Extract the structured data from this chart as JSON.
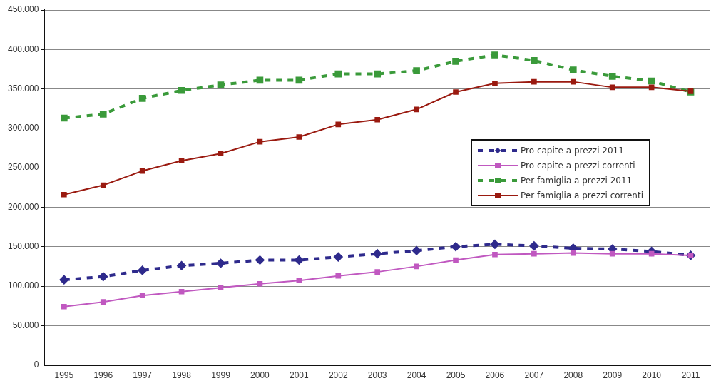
{
  "chart_data": {
    "type": "line",
    "categories": [
      "1995",
      "1996",
      "1997",
      "1998",
      "1999",
      "2000",
      "2001",
      "2002",
      "2003",
      "2004",
      "2005",
      "2006",
      "2007",
      "2008",
      "2009",
      "2010",
      "2011"
    ],
    "series": [
      {
        "name": "Pro capite a prezzi 2011",
        "color": "#2e2a8c",
        "line_style": "dashed",
        "marker": "diamond",
        "values": [
          108000,
          112000,
          120000,
          126000,
          129000,
          133000,
          133000,
          137000,
          141000,
          145000,
          150000,
          153000,
          151000,
          148000,
          147000,
          144000,
          139000
        ]
      },
      {
        "name": "Pro capite a prezzi correnti",
        "color": "#c058c0",
        "line_style": "solid",
        "marker": "square",
        "values": [
          74000,
          80000,
          88000,
          93000,
          98000,
          103000,
          107000,
          113000,
          118000,
          125000,
          133000,
          140000,
          141000,
          142000,
          141000,
          141000,
          139000
        ]
      },
      {
        "name": "Per famiglia a prezzi 2011",
        "color": "#3a9a3a",
        "line_style": "dashed",
        "marker": "square",
        "values": [
          313000,
          318000,
          338000,
          348000,
          355000,
          361000,
          361000,
          369000,
          369000,
          373000,
          385000,
          393000,
          386000,
          374000,
          366000,
          360000,
          346000
        ]
      },
      {
        "name": "Per famiglia a prezzi correnti",
        "color": "#9a1a10",
        "line_style": "solid",
        "marker": "square",
        "values": [
          216000,
          228000,
          246000,
          259000,
          268000,
          283000,
          289000,
          305000,
          311000,
          324000,
          346000,
          357000,
          359000,
          359000,
          352000,
          352000,
          347000
        ]
      }
    ],
    "ylim": [
      0,
      450000
    ],
    "yticks": [
      {
        "value": 0,
        "label": "0"
      },
      {
        "value": 50000,
        "label": "50.000"
      },
      {
        "value": 100000,
        "label": "100.000"
      },
      {
        "value": 150000,
        "label": "150.000"
      },
      {
        "value": 200000,
        "label": "200.000"
      },
      {
        "value": 250000,
        "label": "250.000"
      },
      {
        "value": 300000,
        "label": "300.000"
      },
      {
        "value": 350000,
        "label": "350.000"
      },
      {
        "value": 400000,
        "label": "400.000"
      },
      {
        "value": 450000,
        "label": "450.000"
      }
    ],
    "grid": "y",
    "legend": "right"
  }
}
